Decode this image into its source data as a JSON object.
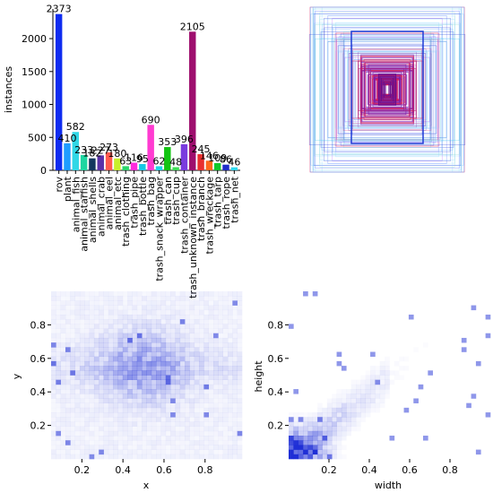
{
  "chart_data": [
    {
      "type": "bar",
      "ylabel": "instances",
      "ylim": [
        0,
        2450
      ],
      "y_ticks": [
        0,
        500,
        1000,
        1500,
        2000
      ],
      "grid": false,
      "categories": [
        "rov",
        "plant",
        "animal_fish",
        "animal_starfish",
        "animal_shells",
        "animal_crab",
        "animal_eel",
        "animal_etc",
        "trash_clothing",
        "trash_pipe",
        "trash_bottle",
        "trash_bag",
        "trash_snack_wrapper",
        "trash_can",
        "trash_cup",
        "trash_container",
        "trash_unknown_instance",
        "trash_branch",
        "trash_wreckage",
        "trash_tarp",
        "trash_rope",
        "trash_net"
      ],
      "values": [
        2373,
        410,
        582,
        233,
        182,
        227,
        273,
        180,
        63,
        116,
        95,
        690,
        62,
        353,
        48,
        396,
        2105,
        245,
        146,
        109,
        86,
        46
      ],
      "value_labels": [
        "2373",
        "410",
        "582",
        "233",
        "182",
        "227",
        "273",
        "180",
        "63",
        "116",
        "95",
        "690",
        "62",
        "353",
        "48",
        "396",
        "2105",
        "245",
        "146",
        "109",
        "86",
        "46"
      ],
      "colors": [
        "#0f2cf0",
        "#1f9cff",
        "#31d7e6",
        "#1fd6a1",
        "#12365e",
        "#5b31a8",
        "#ff5a4f",
        "#c8ef2a",
        "#2bd66b",
        "#ff2bdd",
        "#18c7e5",
        "#ff3bd1",
        "#1ed6e6",
        "#12c412",
        "#3ddd55",
        "#7a3bde",
        "#9e0f6e",
        "#e8302f",
        "#ff6a1c",
        "#11c92c",
        "#1d2cc9",
        "#2fd8ef"
      ]
    },
    {
      "type": "box_overlay",
      "description_label": "",
      "grid": false
    },
    {
      "type": "heatmap",
      "xlabel": "x",
      "ylabel": "y",
      "xlim": [
        0.05,
        0.98
      ],
      "ylim": [
        0.0,
        1.0
      ],
      "x_ticks": [
        0.2,
        0.4,
        0.6,
        0.8
      ],
      "y_ticks": [
        0.2,
        0.4,
        0.6,
        0.8
      ],
      "color": "#1f2fd6"
    },
    {
      "type": "heatmap",
      "xlabel": "width",
      "ylabel": "height",
      "xlim": [
        0.0,
        1.0
      ],
      "ylim": [
        0.0,
        1.0
      ],
      "x_ticks": [
        0.2,
        0.4,
        0.6,
        0.8
      ],
      "y_ticks": [
        0.2,
        0.4,
        0.6,
        0.8
      ],
      "color": "#1f2fd6"
    }
  ]
}
